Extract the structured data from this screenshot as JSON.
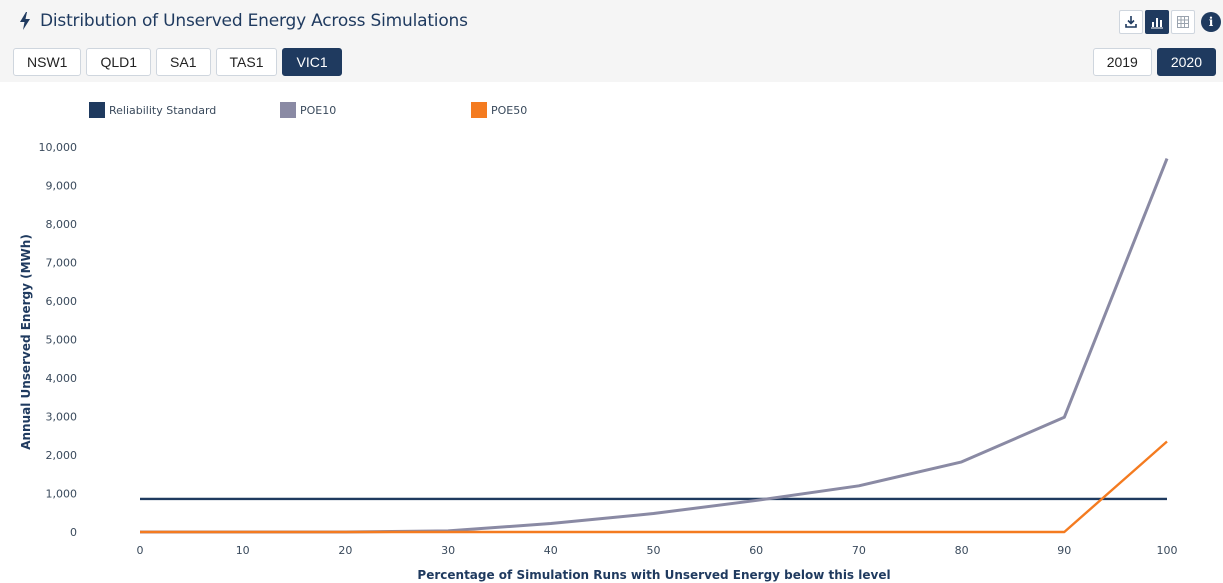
{
  "header": {
    "title": "Distribution of Unserved Energy Across Simulations",
    "icons": [
      "lightning-icon",
      "download-icon",
      "chart-icon",
      "table-icon",
      "info-icon"
    ],
    "info_label": "i"
  },
  "regions": {
    "items": [
      "NSW1",
      "QLD1",
      "SA1",
      "TAS1",
      "VIC1"
    ],
    "selected": "VIC1"
  },
  "years": {
    "items": [
      "2019",
      "2020"
    ],
    "selected": "2020"
  },
  "colors": {
    "primary": "#1f3a5f",
    "reliability": "#1f3a5f",
    "poe10": "#8a8aa4",
    "poe50": "#f47b20"
  },
  "chart_data": {
    "type": "line",
    "title": "",
    "xlabel": "Percentage of Simulation Runs with Unserved Energy below this level",
    "ylabel": "Annual Unserved Energy (MWh)",
    "x": [
      0,
      10,
      20,
      30,
      40,
      50,
      60,
      70,
      80,
      90,
      100
    ],
    "xlim": [
      0,
      100
    ],
    "ylim": [
      0,
      10000
    ],
    "xticks": [
      "0",
      "10",
      "20",
      "30",
      "40",
      "50",
      "60",
      "70",
      "80",
      "90",
      "100"
    ],
    "yticks": [
      "0",
      "1,000",
      "2,000",
      "3,000",
      "4,000",
      "5,000",
      "6,000",
      "7,000",
      "8,000",
      "9,000",
      "10,000"
    ],
    "ytick_values": [
      0,
      1000,
      2000,
      3000,
      4000,
      5000,
      6000,
      7000,
      8000,
      9000,
      10000
    ],
    "legend_position": "top-left",
    "grid": false,
    "series": [
      {
        "name": "Reliability Standard",
        "values": [
          860,
          860,
          860,
          860,
          860,
          860,
          860,
          860,
          860,
          860,
          860
        ]
      },
      {
        "name": "POE10",
        "values": [
          0,
          0,
          0,
          30,
          220,
          480,
          820,
          1200,
          1820,
          2980,
          9700
        ]
      },
      {
        "name": "POE50",
        "values": [
          0,
          0,
          0,
          0,
          0,
          0,
          0,
          0,
          0,
          0,
          2350
        ]
      }
    ]
  }
}
